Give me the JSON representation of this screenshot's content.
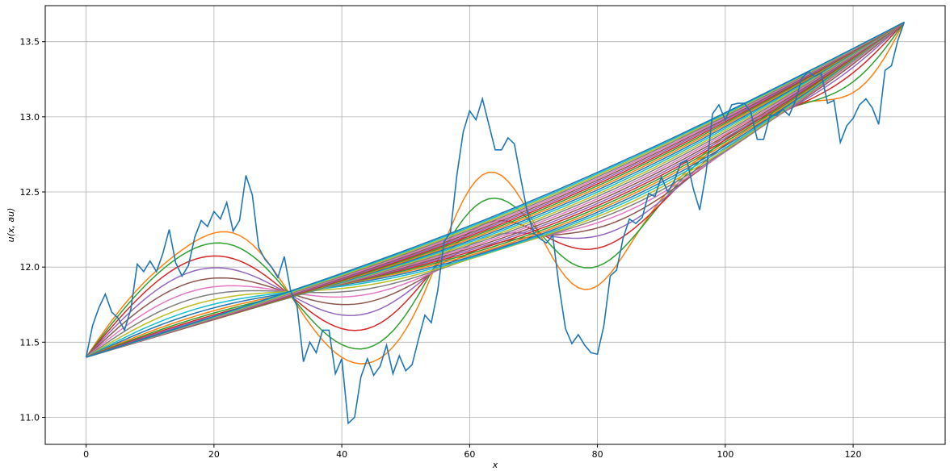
{
  "chart_data": {
    "type": "line",
    "title": "",
    "xlabel": "x",
    "ylabel": "u(x, au)",
    "xlim": [
      -6.4,
      134.4
    ],
    "ylim": [
      10.82,
      13.74
    ],
    "xticks": [
      0,
      20,
      40,
      60,
      80,
      100,
      120
    ],
    "yticks": [
      11.0,
      11.5,
      12.0,
      12.5,
      13.0,
      13.5
    ],
    "xtick_labels": [
      "0",
      "20",
      "40",
      "60",
      "80",
      "100",
      "120"
    ],
    "ytick_labels": [
      "11.0",
      "11.5",
      "12.0",
      "12.5",
      "13.0",
      "13.5"
    ],
    "grid": true,
    "legend": "none",
    "endpoints": {
      "x0": 0,
      "y0": 11.4,
      "x1": 128,
      "y1": 13.63
    },
    "smoothing_curves_count": 30,
    "palette": [
      "#1f77b4",
      "#ff7f0e",
      "#2ca02c",
      "#d62728",
      "#9467bd",
      "#8c564b",
      "#e377c2",
      "#7f7f7f",
      "#bcbd22",
      "#17becf"
    ],
    "series": [
      {
        "color": "#1f77b4",
        "x": [
          0,
          1,
          2,
          3,
          4,
          5,
          6,
          7,
          8,
          9,
          10,
          11,
          12,
          13,
          14,
          15,
          16,
          17,
          18,
          19,
          20,
          21,
          22,
          23,
          24,
          25,
          26,
          27,
          28,
          29,
          30,
          31,
          32,
          33,
          34,
          35,
          36,
          37,
          38,
          39,
          40,
          41,
          42,
          43,
          44,
          45,
          46,
          47,
          48,
          49,
          50,
          51,
          52,
          53,
          54,
          55,
          56,
          57,
          58,
          59,
          60,
          61,
          62,
          63,
          64,
          65,
          66,
          67,
          68,
          69,
          70,
          71,
          72,
          73,
          74,
          75,
          76,
          77,
          78,
          79,
          80,
          81,
          82,
          83,
          84,
          85,
          86,
          87,
          88,
          89,
          90,
          91,
          92,
          93,
          94,
          95,
          96,
          97,
          98,
          99,
          100,
          101,
          102,
          103,
          104,
          105,
          106,
          107,
          108,
          109,
          110,
          111,
          112,
          113,
          114,
          115,
          116,
          117,
          118,
          119,
          120,
          121,
          122,
          123,
          124,
          125,
          126,
          127,
          128
        ],
        "y": [
          11.4,
          11.61,
          11.73,
          11.82,
          11.7,
          11.66,
          11.58,
          11.72,
          12.02,
          11.97,
          12.04,
          11.97,
          12.09,
          12.25,
          12.03,
          11.94,
          12.01,
          12.2,
          12.31,
          12.27,
          12.37,
          12.32,
          12.43,
          12.24,
          12.31,
          12.61,
          12.48,
          12.13,
          12.05,
          12.0,
          11.93,
          12.07,
          11.84,
          11.74,
          11.37,
          11.5,
          11.43,
          11.58,
          11.58,
          11.29,
          11.39,
          10.96,
          11.0,
          11.27,
          11.39,
          11.28,
          11.34,
          11.48,
          11.29,
          11.41,
          11.31,
          11.35,
          11.52,
          11.68,
          11.63,
          11.84,
          12.17,
          12.23,
          12.61,
          12.9,
          13.04,
          12.98,
          13.12,
          12.95,
          12.78,
          12.78,
          12.86,
          12.82,
          12.59,
          12.37,
          12.23,
          12.19,
          12.16,
          12.21,
          11.87,
          11.59,
          11.49,
          11.55,
          11.48,
          11.43,
          11.42,
          11.61,
          11.94,
          11.98,
          12.19,
          12.32,
          12.29,
          12.33,
          12.49,
          12.47,
          12.6,
          12.5,
          12.57,
          12.69,
          12.71,
          12.52,
          12.38,
          12.63,
          13.02,
          13.08,
          12.98,
          13.08,
          13.09,
          13.09,
          13.03,
          12.85,
          12.85,
          13.01,
          13.01,
          13.05,
          13.01,
          13.11,
          13.26,
          13.3,
          13.27,
          13.29,
          13.09,
          13.11,
          12.83,
          12.94,
          12.99,
          13.08,
          13.12,
          13.06,
          12.95,
          13.31,
          13.34,
          13.51,
          13.63
        ]
      }
    ]
  }
}
